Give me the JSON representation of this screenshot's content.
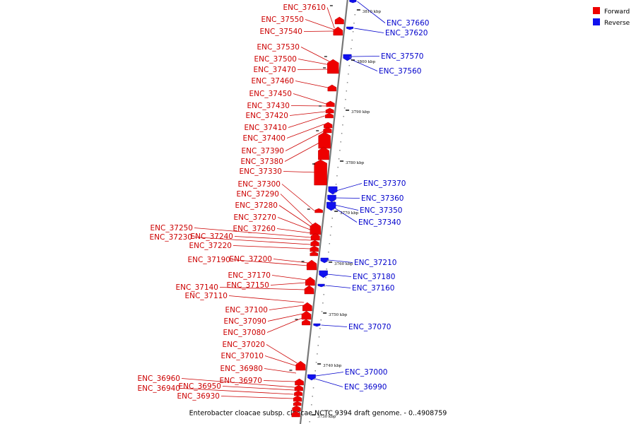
{
  "caption": "Enterobacter cloacae subsp. cloacae NCTC 9394 draft genome. - 0..4908759",
  "legend": [
    {
      "label": "Forward",
      "color": "#ee0000"
    },
    {
      "label": "Reverse",
      "color": "#1111ee"
    }
  ],
  "colors": {
    "forward": "#ee0000",
    "reverse": "#1111ee",
    "forward_label": "#cc0000",
    "reverse_label": "#0000cc",
    "axis": "#777777"
  },
  "ticks": [
    "3810 kbp",
    "3800 kbp",
    "3790 kbp",
    "3780 kbp",
    "3770 kbp",
    "3760 kbp",
    "3750 kbp",
    "3740 kbp",
    "3730 kbp"
  ],
  "forward_genes": [
    "ENC_37610",
    "ENC_37550",
    "ENC_37540",
    "ENC_37530",
    "ENC_37500",
    "ENC_37470",
    "ENC_37460",
    "ENC_37450",
    "ENC_37430",
    "ENC_37420",
    "ENC_37410",
    "ENC_37400",
    "ENC_37390",
    "ENC_37380",
    "ENC_37330",
    "ENC_37300",
    "ENC_37290",
    "ENC_37280",
    "ENC_37270",
    "ENC_37260",
    "ENC_37250",
    "ENC_37240",
    "ENC_37230",
    "ENC_37220",
    "ENC_37200",
    "ENC_37190",
    "ENC_37170",
    "ENC_37150",
    "ENC_37140",
    "ENC_37110",
    "ENC_37100",
    "ENC_37090",
    "ENC_37080",
    "ENC_37020",
    "ENC_37010",
    "ENC_36980",
    "ENC_36970",
    "ENC_36960",
    "ENC_36950",
    "ENC_36940",
    "ENC_36930"
  ],
  "reverse_genes": [
    "ENC_37660",
    "ENC_37620",
    "ENC_37570",
    "ENC_37560",
    "ENC_37370",
    "ENC_37360",
    "ENC_37350",
    "ENC_37340",
    "ENC_37210",
    "ENC_37180",
    "ENC_37160",
    "ENC_37070",
    "ENC_37000",
    "ENC_36990"
  ]
}
